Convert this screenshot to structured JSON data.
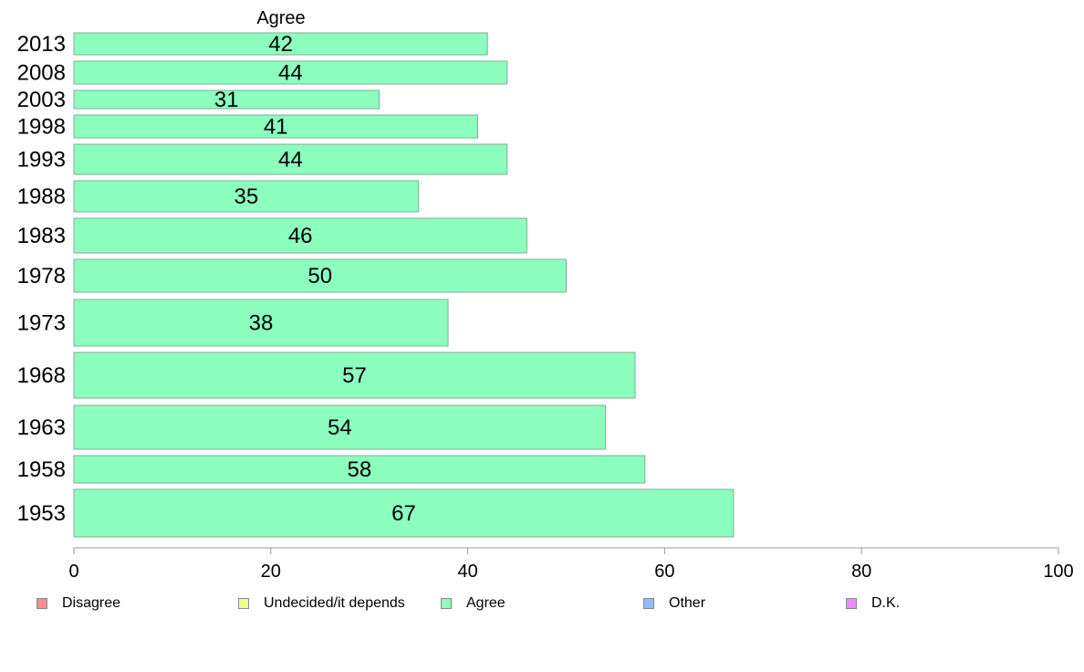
{
  "chart_data": {
    "type": "bar",
    "orientation": "horizontal",
    "title": "Agree",
    "categories": [
      "2013",
      "2008",
      "2003",
      "1998",
      "1993",
      "1988",
      "1983",
      "1978",
      "1973",
      "1968",
      "1963",
      "1958",
      "1953"
    ],
    "series": [
      {
        "name": "Agree",
        "values": [
          42,
          44,
          31,
          41,
          44,
          35,
          46,
          50,
          38,
          57,
          54,
          58,
          67
        ],
        "color": "#8cffbf"
      }
    ],
    "xlim": [
      0,
      100
    ],
    "xticks": [
      0,
      20,
      40,
      60,
      80,
      100
    ],
    "xlabel": "",
    "ylabel": "",
    "grid": false,
    "legend_position": "bottom"
  },
  "legend": [
    {
      "label": "Disagree",
      "color": "#ff8c8c"
    },
    {
      "label": "Undecided/it depends",
      "color": "#efff8c"
    },
    {
      "label": "Agree",
      "color": "#8cffbf"
    },
    {
      "label": "Other",
      "color": "#8cbfff"
    },
    {
      "label": "D.K.",
      "color": "#ef8cff"
    }
  ]
}
